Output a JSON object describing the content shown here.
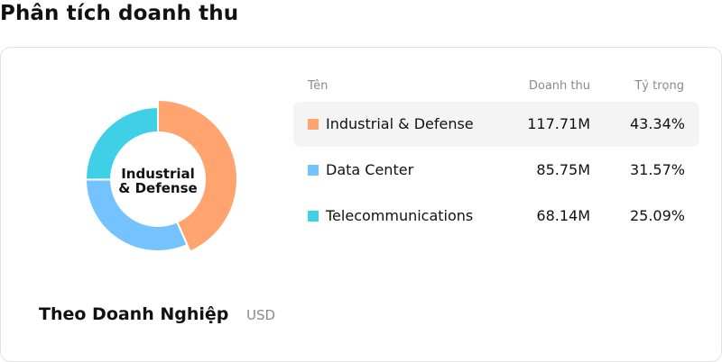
{
  "title": "Phân tích doanh thu",
  "summary": {
    "center_label_line1": "Industrial",
    "center_label_line2": "& Defense",
    "group_label": "Theo Doanh Nghiệp",
    "currency": "USD"
  },
  "table": {
    "headers": {
      "name": "Tên",
      "revenue": "Doanh thu",
      "share": "Tỷ trọng"
    },
    "rows": [
      {
        "name": "Industrial & Defense",
        "revenue": "117.71M",
        "share": "43.34%",
        "color": "#ffa46e",
        "active": true
      },
      {
        "name": "Data Center",
        "revenue": "85.75M",
        "share": "31.57%",
        "color": "#74c2ff",
        "active": false
      },
      {
        "name": "Telecommunications",
        "revenue": "68.14M",
        "share": "25.09%",
        "color": "#3fd0e8",
        "active": false
      }
    ]
  },
  "chart_data": {
    "type": "pie",
    "categories": [
      "Industrial & Defense",
      "Data Center",
      "Telecommunications"
    ],
    "values": [
      117.71,
      85.75,
      68.14
    ],
    "colors": [
      "#ffa46e",
      "#74c2ff",
      "#3fd0e8"
    ],
    "highlighted": "Industrial & Defense"
  }
}
